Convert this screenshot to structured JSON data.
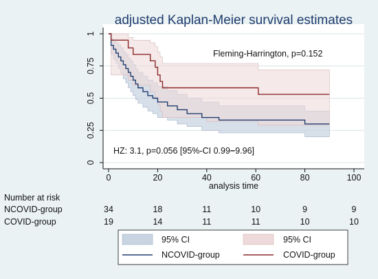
{
  "chart_data": {
    "type": "line",
    "title": "adjusted Kaplan-Meier survival estimates",
    "xlabel": "analysis time",
    "ylabel": "",
    "xlim": [
      0,
      100
    ],
    "ylim": [
      0,
      1
    ],
    "x_ticks": [
      "0",
      "20",
      "40",
      "60",
      "80",
      "100"
    ],
    "y_ticks": [
      "0",
      "0.25",
      "0.5",
      "0.75",
      "1"
    ],
    "grid": true,
    "annotations": {
      "test": "Fleming-Harrington, p=0.152",
      "hazard": "HZ: 3.1, p=0.056 [95%-CI 0.99",
      "hazard_end": "9.96]"
    },
    "legend": {
      "placement": "bottom",
      "entries": [
        {
          "label": "95% CI",
          "kind": "band",
          "series": "NCOVID-group"
        },
        {
          "label": "95% CI",
          "kind": "band",
          "series": "COVID-group"
        },
        {
          "label": "NCOVID-group",
          "kind": "line",
          "series": "NCOVID-group"
        },
        {
          "label": "COVID-group",
          "kind": "line",
          "series": "COVID-group"
        }
      ]
    },
    "series": [
      {
        "name": "NCOVID-group",
        "color": "#1f3c6e",
        "band_color": "#c9d4e2",
        "x": [
          0,
          1,
          2,
          3,
          4,
          5,
          6,
          7,
          8,
          9,
          10,
          11,
          12,
          13,
          14,
          15,
          16,
          17,
          18,
          19,
          20,
          21,
          22,
          23,
          24,
          26,
          27,
          28,
          29,
          30,
          32,
          34,
          36,
          38,
          40,
          43,
          45,
          47,
          50,
          55,
          60,
          65,
          70,
          80,
          85,
          90
        ],
        "values": [
          1.0,
          0.91,
          0.88,
          0.85,
          0.82,
          0.79,
          0.76,
          0.73,
          0.7,
          0.67,
          0.64,
          0.61,
          0.58,
          0.58,
          0.55,
          0.55,
          0.52,
          0.52,
          0.5,
          0.5,
          0.47,
          0.47,
          0.47,
          0.47,
          0.44,
          0.44,
          0.44,
          0.41,
          0.41,
          0.41,
          0.38,
          0.38,
          0.38,
          0.35,
          0.35,
          0.35,
          0.33,
          0.33,
          0.33,
          0.33,
          0.33,
          0.33,
          0.33,
          0.3,
          0.3,
          0.3
        ],
        "ci_lower": [
          1.0,
          0.84,
          0.8,
          0.77,
          0.73,
          0.69,
          0.65,
          0.62,
          0.58,
          0.55,
          0.52,
          0.49,
          0.46,
          0.46,
          0.43,
          0.43,
          0.4,
          0.4,
          0.38,
          0.38,
          0.35,
          0.35,
          0.35,
          0.35,
          0.33,
          0.33,
          0.33,
          0.3,
          0.3,
          0.3,
          0.28,
          0.28,
          0.28,
          0.25,
          0.25,
          0.25,
          0.23,
          0.23,
          0.23,
          0.23,
          0.23,
          0.23,
          0.23,
          0.2,
          0.2,
          0.2
        ],
        "ci_upper": [
          1.0,
          0.96,
          0.94,
          0.93,
          0.91,
          0.89,
          0.86,
          0.84,
          0.81,
          0.79,
          0.76,
          0.73,
          0.7,
          0.7,
          0.67,
          0.67,
          0.64,
          0.64,
          0.62,
          0.62,
          0.59,
          0.59,
          0.59,
          0.59,
          0.56,
          0.56,
          0.56,
          0.53,
          0.53,
          0.53,
          0.5,
          0.5,
          0.5,
          0.47,
          0.47,
          0.47,
          0.44,
          0.44,
          0.44,
          0.44,
          0.44,
          0.44,
          0.44,
          0.4,
          0.4,
          0.4
        ]
      },
      {
        "name": "COVID-group",
        "color": "#8b2a2a",
        "band_color": "#eedada",
        "x": [
          0,
          1,
          2,
          7,
          8,
          9,
          10,
          16,
          17,
          19,
          20,
          21,
          22,
          40,
          60,
          61,
          62,
          90
        ],
        "values": [
          1.0,
          0.95,
          0.95,
          0.95,
          0.89,
          0.89,
          0.84,
          0.84,
          0.79,
          0.74,
          0.68,
          0.63,
          0.58,
          0.58,
          0.58,
          0.53,
          0.53,
          0.53
        ],
        "ci_lower": [
          1.0,
          0.68,
          0.68,
          0.68,
          0.64,
          0.64,
          0.6,
          0.6,
          0.55,
          0.5,
          0.45,
          0.4,
          0.35,
          0.32,
          0.32,
          0.29,
          0.29,
          0.29
        ],
        "ci_upper": [
          1.0,
          1.0,
          1.0,
          1.0,
          0.97,
          0.97,
          0.95,
          0.95,
          0.93,
          0.9,
          0.86,
          0.82,
          0.77,
          0.77,
          0.77,
          0.72,
          0.72,
          0.72
        ]
      }
    ]
  },
  "risk_table": {
    "title": "Number at risk",
    "times": [
      0,
      20,
      40,
      60,
      80,
      100
    ],
    "rows": [
      {
        "label": "NCOVID-group",
        "counts": [
          "34",
          "18",
          "11",
          "10",
          "9",
          "9"
        ]
      },
      {
        "label": "COVID-group",
        "counts": [
          "19",
          "14",
          "11",
          "11",
          "10",
          "10"
        ]
      }
    ]
  },
  "colors": {
    "background": "#eaf2f3",
    "plot_background": "#ffffff",
    "grid": "#d9e3e6",
    "text": "#111111"
  }
}
